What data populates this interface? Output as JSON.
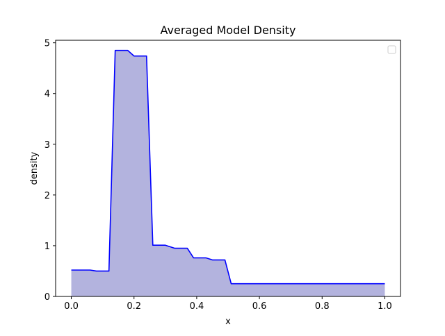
{
  "chart_data": {
    "type": "area",
    "title": "Averaged Model Density",
    "xlabel": "x",
    "ylabel": "density",
    "xlim": [
      -0.05,
      1.05
    ],
    "ylim": [
      0,
      5.05
    ],
    "xticks": [
      0.0,
      0.2,
      0.4,
      0.6,
      0.8,
      1.0
    ],
    "xtick_labels": [
      "0.0",
      "0.2",
      "0.4",
      "0.6",
      "0.8",
      "1.0"
    ],
    "yticks": [
      0,
      1,
      2,
      3,
      4,
      5
    ],
    "ytick_labels": [
      "0",
      "1",
      "2",
      "3",
      "4",
      "5"
    ],
    "grid": false,
    "legend": {
      "location": "upper right",
      "entries": []
    },
    "line_color": "#0000ff",
    "fill_color": "#b3b3de",
    "series": [
      {
        "x": [
          0.0,
          0.06,
          0.08,
          0.12,
          0.14,
          0.18,
          0.2,
          0.24,
          0.26,
          0.3,
          0.33,
          0.37,
          0.39,
          0.43,
          0.45,
          0.49,
          0.51,
          0.55,
          0.6,
          0.7,
          0.8,
          0.9,
          1.0
        ],
        "y": [
          0.52,
          0.52,
          0.5,
          0.5,
          4.85,
          4.85,
          4.74,
          4.74,
          1.01,
          1.01,
          0.95,
          0.95,
          0.76,
          0.76,
          0.72,
          0.72,
          0.25,
          0.25,
          0.25,
          0.25,
          0.25,
          0.25,
          0.25
        ]
      }
    ]
  }
}
